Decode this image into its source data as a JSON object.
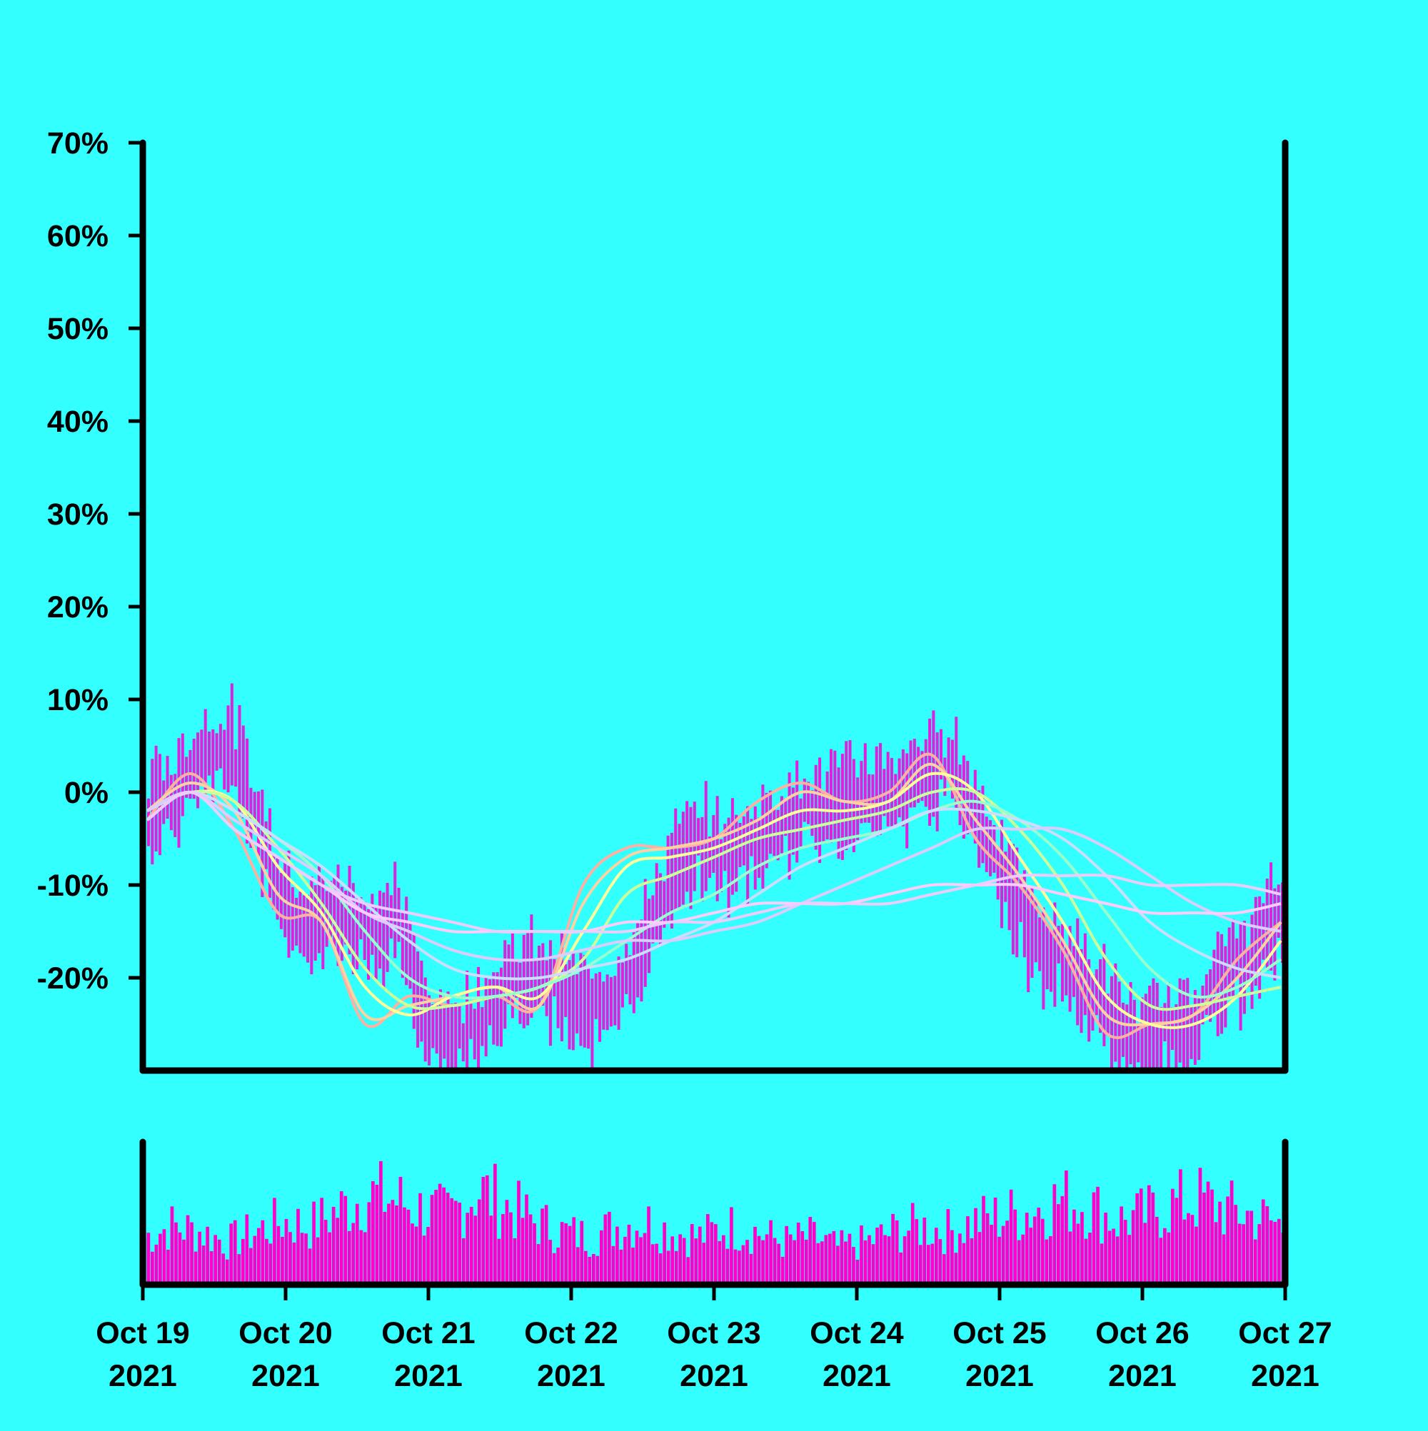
{
  "chart_data": {
    "type": "line",
    "title": "",
    "xlabel": "",
    "ylabel": "",
    "ylim": [
      -30,
      70
    ],
    "y_ticks": [
      70,
      60,
      50,
      40,
      30,
      20,
      10,
      0,
      -10,
      -20
    ],
    "y_tick_labels": [
      "70%",
      "60%",
      "50%",
      "40%",
      "30%",
      "20%",
      "10%",
      "0%",
      "-10%",
      "-20%"
    ],
    "x_tick_labels": [
      [
        "Oct 19",
        "2021"
      ],
      [
        "Oct 20",
        "2021"
      ],
      [
        "Oct 21",
        "2021"
      ],
      [
        "Oct 22",
        "2021"
      ],
      [
        "Oct 23",
        "2021"
      ],
      [
        "Oct 24",
        "2021"
      ],
      [
        "Oct 25",
        "2021"
      ],
      [
        "Oct 26",
        "2021"
      ],
      [
        "Oct 27",
        "2021"
      ]
    ],
    "x_range": [
      "2021-10-19",
      "2021-10-27"
    ],
    "grid": false,
    "legend": "none",
    "background": "#33ffff",
    "bar_color": "#ff00cc",
    "price_bar_color": "#dd22dd",
    "price_series": {
      "name": "",
      "x_start": "2021-10-19",
      "x_end": "2021-10-27",
      "mid_values": [
        -2,
        0,
        4,
        5,
        -4,
        -12,
        -14,
        -13,
        -15,
        -14,
        -24,
        -27,
        -24,
        -21,
        -20,
        -22,
        -24,
        -21,
        -16,
        -8,
        -6,
        -7,
        -5,
        -3,
        -2,
        -1,
        0,
        -1,
        2,
        3,
        -3,
        -9,
        -16,
        -18,
        -21,
        -25,
        -27,
        -26,
        -24,
        -20,
        -17,
        -13
      ],
      "spread": 4
    },
    "moving_averages": [
      {
        "color": "#ffb0a0",
        "values": [
          -3,
          2,
          -4,
          -13,
          -14,
          -25,
          -22,
          -23,
          -22,
          -23,
          -10,
          -6,
          -6,
          -5,
          -1,
          1,
          -1,
          0,
          4,
          -5,
          -10,
          -17,
          -26,
          -25,
          -24,
          -18,
          -14
        ]
      },
      {
        "color": "#ffd0a0",
        "values": [
          -2,
          1,
          -2,
          -11,
          -14,
          -24,
          -23,
          -22,
          -21,
          -23,
          -12,
          -7,
          -6,
          -5,
          -3,
          0,
          -1,
          -1,
          3,
          -3,
          -9,
          -16,
          -24,
          -25,
          -24,
          -20,
          -14
        ]
      },
      {
        "color": "#ffff99",
        "values": [
          -2,
          0,
          -1,
          -8,
          -13,
          -21,
          -24,
          -22,
          -21,
          -22,
          -15,
          -8,
          -7,
          -6,
          -4,
          -2,
          -2,
          -1,
          2,
          0,
          -7,
          -14,
          -22,
          -25,
          -25,
          -22,
          -16
        ]
      },
      {
        "color": "#ccff99",
        "values": [
          -2,
          0,
          -1,
          -6,
          -12,
          -19,
          -23,
          -23,
          -22,
          -21,
          -18,
          -11,
          -9,
          -7,
          -5,
          -4,
          -3,
          -2,
          0,
          0,
          -4,
          -10,
          -18,
          -23,
          -23,
          -22,
          -21
        ]
      },
      {
        "color": "#99ffcc",
        "values": [
          -2,
          0,
          -2,
          -5,
          -9,
          -15,
          -20,
          -22,
          -22,
          -21,
          -19,
          -16,
          -13,
          -11,
          -8,
          -6,
          -5,
          -4,
          -2,
          -1,
          -3,
          -7,
          -13,
          -19,
          -22,
          -21,
          -18
        ]
      },
      {
        "color": "#ccddff",
        "values": [
          -2,
          0,
          -2,
          -5,
          -8,
          -12,
          -16,
          -19,
          -20,
          -20,
          -19,
          -18,
          -16,
          -14,
          -11,
          -8,
          -6,
          -4,
          -2,
          -2,
          -3,
          -5,
          -9,
          -14,
          -17,
          -19,
          -20
        ]
      },
      {
        "color": "#ddccff",
        "values": [
          -2,
          0,
          -3,
          -6,
          -9,
          -13,
          -15,
          -17,
          -18,
          -18,
          -17,
          -16,
          -16,
          -15,
          -14,
          -12,
          -10,
          -8,
          -6,
          -4,
          -4,
          -4,
          -6,
          -9,
          -12,
          -14,
          -15
        ]
      },
      {
        "color": "#ffccff",
        "values": [
          -3,
          0,
          -4,
          -7,
          -10,
          -13,
          -14,
          -15,
          -15,
          -15,
          -15,
          -14,
          -14,
          -13,
          -12,
          -12,
          -12,
          -11,
          -10,
          -10,
          -10,
          -11,
          -12,
          -13,
          -13,
          -13,
          -12
        ]
      },
      {
        "color": "#eeccff",
        "values": [
          -3,
          0,
          -4,
          -7,
          -10,
          -12,
          -13,
          -14,
          -15,
          -15,
          -15,
          -15,
          -14,
          -14,
          -13,
          -12,
          -12,
          -12,
          -11,
          -10,
          -9,
          -9,
          -9,
          -10,
          -10,
          -10,
          -11
        ]
      }
    ],
    "volume_series": {
      "name": "",
      "min": 0,
      "max": 1,
      "profile": [
        0.45,
        0.55,
        0.5,
        0.4,
        0.5,
        0.6,
        0.55,
        0.7,
        0.85,
        0.8,
        0.7,
        0.65,
        0.9,
        0.75,
        0.6,
        0.5,
        0.45,
        0.55,
        0.6,
        0.5,
        0.45,
        0.55,
        0.5,
        0.4,
        0.45,
        0.35,
        0.4,
        0.5,
        0.55,
        0.5,
        0.6,
        0.65,
        0.7,
        0.8,
        0.75,
        0.6,
        0.65,
        0.75,
        0.8,
        0.7,
        0.65,
        0.55
      ]
    }
  }
}
